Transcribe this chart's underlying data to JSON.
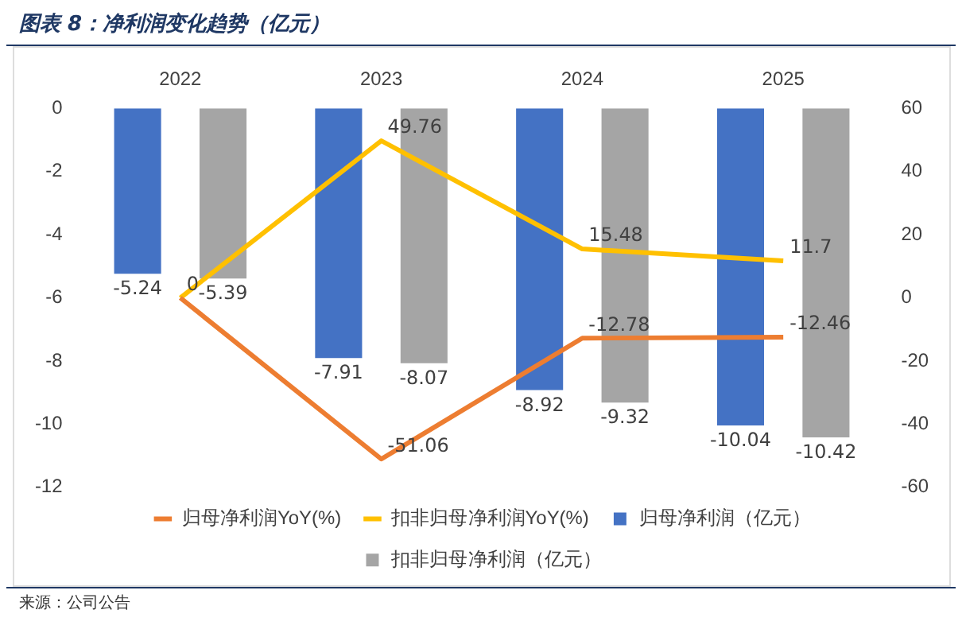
{
  "chart_data": {
    "type": "bar",
    "title": "图表 8：净利润变化趋势（亿元）",
    "categories": [
      "2022",
      "2023",
      "2024",
      "2025"
    ],
    "series": [
      {
        "name": "归母净利润（亿元）",
        "color": "#4472c4",
        "values": [
          -5.24,
          -7.91,
          -8.92,
          -10.04
        ],
        "value_labels": [
          "-5.24",
          "-7.91",
          "-8.92",
          "-10.04"
        ]
      },
      {
        "name": "扣非归母净利润（亿元）",
        "color": "#a5a5a5",
        "values": [
          -5.39,
          -8.07,
          -9.32,
          -10.42
        ],
        "value_labels": [
          "-5.39",
          "-8.07",
          "-9.32",
          "-10.42"
        ]
      },
      {
        "name": "归母净利润YoY(%)",
        "type": "line",
        "axis": "y2",
        "color": "#ed7d31",
        "values": [
          0,
          -51.06,
          -12.78,
          -12.46
        ],
        "value_labels": [
          null,
          "-51.06",
          "-12.78",
          "-12.46"
        ]
      },
      {
        "name": "扣非归母净利润YoY(%)",
        "type": "line",
        "axis": "y2",
        "color": "#ffc000",
        "values": [
          0,
          49.76,
          15.48,
          11.7
        ],
        "value_labels": [
          "0",
          "49.76",
          "15.48",
          "11.7"
        ]
      }
    ],
    "ylim": [
      -12,
      0
    ],
    "yticks": [
      -12,
      -10,
      -8,
      -6,
      -4,
      -2,
      0
    ],
    "y2lim": [
      -60,
      60
    ],
    "y2ticks": [
      -60,
      -40,
      -20,
      0,
      20,
      40,
      60
    ],
    "grid": false,
    "legend": "bottom",
    "marker": "none",
    "annotations": [
      "来源：公司公告"
    ]
  }
}
